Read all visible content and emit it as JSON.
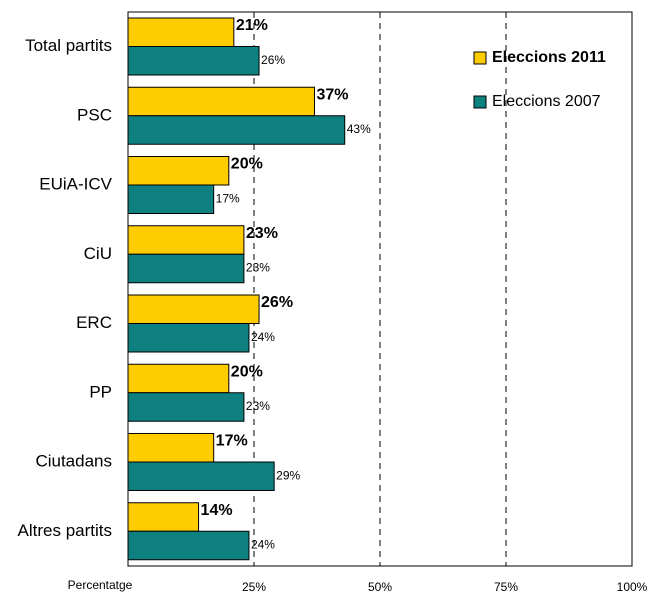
{
  "chart_data": {
    "type": "bar",
    "orientation": "horizontal",
    "categories": [
      "Total partits",
      "PSC",
      "EUiA-ICV",
      "CiU",
      "ERC",
      "PP",
      "Ciutadans",
      "Altres partits"
    ],
    "series": [
      {
        "name": "Eleccions 2011",
        "color": "#ffcc00",
        "values": [
          21,
          37,
          20,
          23,
          26,
          20,
          17,
          14
        ],
        "value_labels": [
          "21%",
          "37%",
          "20%",
          "23%",
          "26%",
          "20%",
          "17%",
          "14%"
        ]
      },
      {
        "name": "Eleccions 2007",
        "color": "#0f8080",
        "values": [
          26,
          43,
          17,
          23,
          24,
          23,
          29,
          24
        ],
        "value_labels": [
          "26%",
          "43%",
          "17%",
          "23%",
          "24%",
          "23%",
          "29%",
          "24%"
        ]
      }
    ],
    "xlabel": "Percentatge",
    "xlim": [
      0,
      100
    ],
    "xticks": [
      {
        "value": 25,
        "label": "25%"
      },
      {
        "value": 50,
        "label": "50%"
      },
      {
        "value": 75,
        "label": "75%"
      },
      {
        "value": 100,
        "label": "100%"
      }
    ],
    "grid": true,
    "legend": "top-right"
  }
}
